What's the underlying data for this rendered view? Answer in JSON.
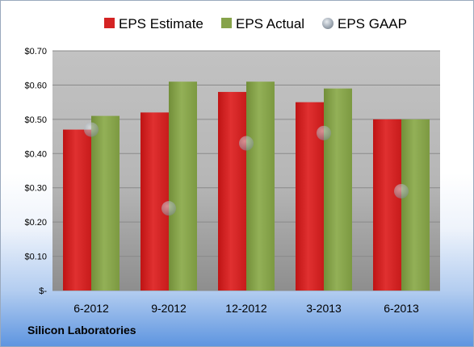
{
  "company_label": "Silicon Laboratories",
  "chart_data": {
    "type": "bar",
    "categories": [
      "6-2012",
      "9-2012",
      "12-2012",
      "3-2013",
      "6-2013"
    ],
    "series": [
      {
        "name": "EPS Estimate",
        "kind": "bar",
        "color": "#d42323",
        "values": [
          0.47,
          0.52,
          0.58,
          0.55,
          0.5
        ]
      },
      {
        "name": "EPS Actual",
        "kind": "bar",
        "color": "#86a34a",
        "values": [
          0.51,
          0.61,
          0.61,
          0.59,
          0.5
        ]
      },
      {
        "name": "EPS GAAP",
        "kind": "marker",
        "color": "#b9c2cc",
        "values": [
          0.47,
          0.24,
          0.43,
          0.46,
          0.29
        ]
      }
    ],
    "ylim": [
      0,
      0.7
    ],
    "yticks": [
      0,
      0.1,
      0.2,
      0.3,
      0.4,
      0.5,
      0.6,
      0.7
    ],
    "ytick_labels": [
      "$-",
      "$0.10",
      "$0.20",
      "$0.30",
      "$0.40",
      "$0.50",
      "$0.60",
      "$0.70"
    ],
    "grid": true,
    "legend_position": "top"
  }
}
